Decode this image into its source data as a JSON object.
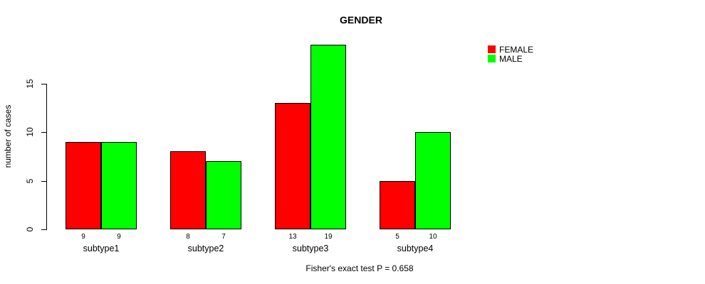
{
  "chart_data": {
    "type": "bar",
    "title": "GENDER",
    "ylabel": "number of cases",
    "xlabel": "",
    "categories": [
      "subtype1",
      "subtype2",
      "subtype3",
      "subtype4"
    ],
    "series": [
      {
        "name": "FEMALE",
        "color": "#ff0000",
        "values": [
          9,
          8,
          13,
          5
        ]
      },
      {
        "name": "MALE",
        "color": "#00ff00",
        "values": [
          9,
          7,
          19,
          10
        ]
      }
    ],
    "bar_value_labels_shown": true,
    "yticks": [
      0,
      5,
      10,
      15
    ],
    "ylim": [
      0,
      19
    ],
    "grid": false,
    "legend_position": "top-right",
    "bar_border_color": "#000000",
    "annotation": "Fisher's exact test P = 0.658"
  }
}
